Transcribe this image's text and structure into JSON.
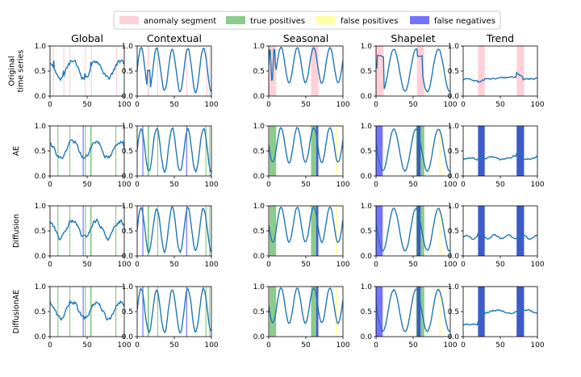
{
  "legend": [
    {
      "label": "anomaly segment",
      "color": "#ffc0cb",
      "opacity": 0.75
    },
    {
      "label": "true positives",
      "color": "#2ca02c",
      "opacity": 0.55
    },
    {
      "label": "false positives",
      "color": "#ffff66",
      "opacity": 0.6
    },
    {
      "label": "false negatives",
      "color": "#0000ff",
      "opacity": 0.55
    }
  ],
  "line_color": "#1f77b4",
  "columns": [
    "Global",
    "Contextual",
    "Seasonal",
    "Shapelet",
    "Trend"
  ],
  "rows": [
    [
      "Original",
      "time series"
    ],
    [
      "AE"
    ],
    [
      "Diffusion"
    ],
    [
      "DiffusionAE"
    ]
  ],
  "chart_data": {
    "type": "line",
    "grid": "4x5 small multiples",
    "x_range": [
      0,
      100
    ],
    "y_range": [
      0,
      1
    ],
    "x_ticks": [
      0,
      50,
      100
    ],
    "y_ticks": [
      0.0,
      0.5,
      1.0
    ],
    "x_tick_labels": [
      "0",
      "50",
      "100"
    ],
    "y_tick_labels": [
      "0.0",
      "0.5",
      "1.0"
    ],
    "series_params": {
      "Global": {
        "base": 0.53,
        "amp": 0.17,
        "period": 32,
        "phase": 0.3,
        "noise": 0.035
      },
      "Contextual": {
        "base": 0.52,
        "amp": 0.43,
        "period": 21,
        "phase": 0.0,
        "noise": 0.02
      },
      "Seasonal": {
        "base": 0.62,
        "amp": 0.35,
        "period": 22,
        "phase": 0.5,
        "noise": 0.01
      },
      "Shapelet": {
        "base": 0.52,
        "amp": 0.42,
        "period": 30,
        "phase": 0.2,
        "noise": 0.01
      },
      "Trend": {
        "base": 0.32,
        "amp": 0.02,
        "period": 25,
        "phase": 0.0,
        "noise": 0.012
      }
    },
    "segments": {
      "Global": {
        "anomaly": [
          [
            4,
            5
          ],
          [
            18,
            19
          ],
          [
            26,
            27
          ],
          [
            47,
            48
          ],
          [
            55,
            56
          ],
          [
            89,
            90
          ]
        ],
        "tp": [
          [
            10,
            11
          ],
          [
            26,
            27
          ],
          [
            47,
            48
          ],
          [
            54,
            56
          ],
          [
            88,
            89
          ]
        ],
        "fp": [],
        "fn": [
          [
            44,
            45
          ]
        ]
      },
      "Contextual": {
        "anomaly": [
          [
            14,
            16
          ],
          [
            27,
            28
          ],
          [
            66,
            67
          ],
          [
            93,
            94
          ],
          [
            97,
            98
          ]
        ],
        "tp": [
          [
            14,
            16
          ],
          [
            27,
            28
          ],
          [
            92,
            93
          ],
          [
            97,
            98
          ]
        ],
        "fp": [],
        "fn": [
          [
            7,
            8
          ],
          [
            66,
            67
          ]
        ]
      },
      "Seasonal": {
        "anomaly": [
          [
            0,
            10
          ],
          [
            57,
            67
          ]
        ],
        "tp": [
          [
            1,
            10
          ],
          [
            57,
            66
          ]
        ],
        "fp": [
          [
            90,
            92
          ]
        ],
        "fn": [
          [
            64,
            67
          ]
        ]
      },
      "Shapelet": {
        "anomaly": [
          [
            0,
            10
          ],
          [
            55,
            65
          ]
        ],
        "tp": [
          [
            54,
            65
          ]
        ],
        "fp": [
          [
            85,
            87
          ]
        ],
        "fn": [
          [
            0,
            9
          ],
          [
            55,
            60
          ]
        ]
      },
      "Trend": {
        "anomaly": [
          [
            20,
            29
          ],
          [
            72,
            82
          ]
        ],
        "tp": [
          [
            20,
            29
          ],
          [
            72,
            82
          ]
        ],
        "fp": [],
        "fn": [
          [
            20,
            29
          ],
          [
            72,
            82
          ]
        ]
      }
    }
  }
}
